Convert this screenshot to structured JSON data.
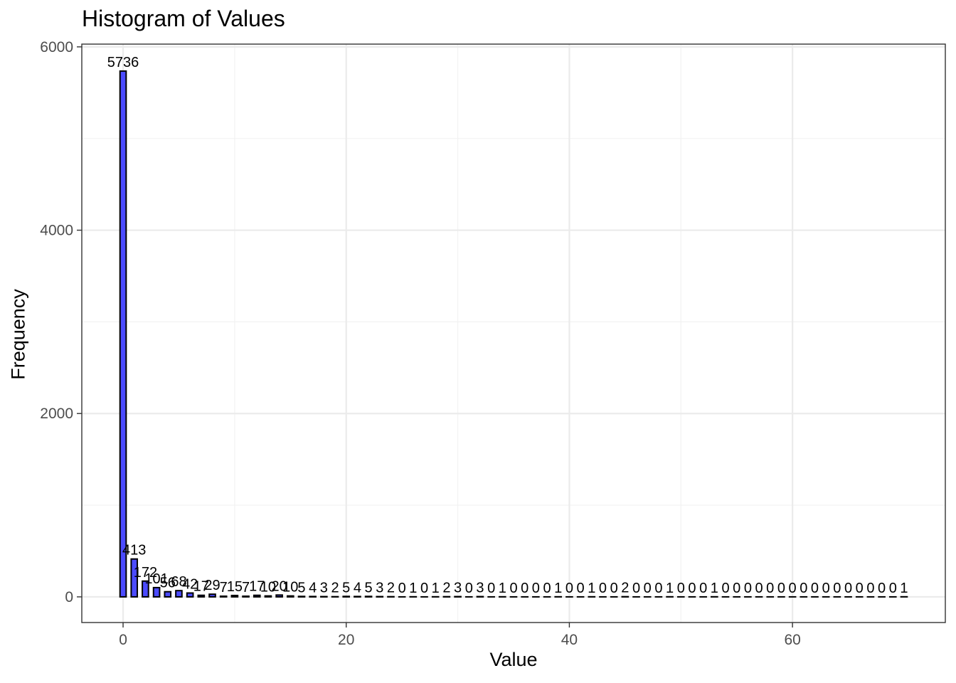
{
  "chart_data": {
    "type": "bar",
    "title": "Histogram of Values",
    "xlabel": "Value",
    "ylabel": "Frequency",
    "x": [
      0,
      1,
      2,
      3,
      4,
      5,
      6,
      7,
      8,
      9,
      10,
      11,
      12,
      13,
      14,
      15,
      16,
      17,
      18,
      19,
      20,
      21,
      22,
      23,
      24,
      25,
      26,
      27,
      28,
      29,
      30,
      31,
      32,
      33,
      34,
      35,
      36,
      37,
      38,
      39,
      40,
      41,
      42,
      43,
      44,
      45,
      46,
      47,
      48,
      49,
      50,
      51,
      52,
      53,
      54,
      55,
      56,
      57,
      58,
      59,
      60,
      61,
      62,
      63,
      64,
      65,
      66,
      67,
      68,
      69,
      70
    ],
    "values": [
      5736,
      413,
      172,
      101,
      56,
      68,
      42,
      17,
      29,
      7,
      15,
      7,
      17,
      10,
      20,
      10,
      5,
      4,
      3,
      2,
      5,
      4,
      5,
      3,
      2,
      0,
      1,
      0,
      1,
      2,
      3,
      0,
      3,
      0,
      1,
      0,
      0,
      0,
      0,
      1,
      0,
      0,
      1,
      0,
      0,
      2,
      0,
      0,
      0,
      1,
      0,
      0,
      0,
      1,
      0,
      0,
      0,
      0,
      0,
      0,
      0,
      0,
      0,
      0,
      0,
      0,
      0,
      0,
      0,
      0,
      1
    ],
    "xlim": [
      -3.7,
      73.7
    ],
    "ylim": [
      -280,
      6030
    ],
    "x_ticks": [
      0,
      20,
      40,
      60
    ],
    "y_ticks": [
      0,
      2000,
      4000,
      6000
    ],
    "bar_color": "#4b4bff",
    "bar_border": "#000000",
    "grid": true,
    "theme": "bw"
  }
}
